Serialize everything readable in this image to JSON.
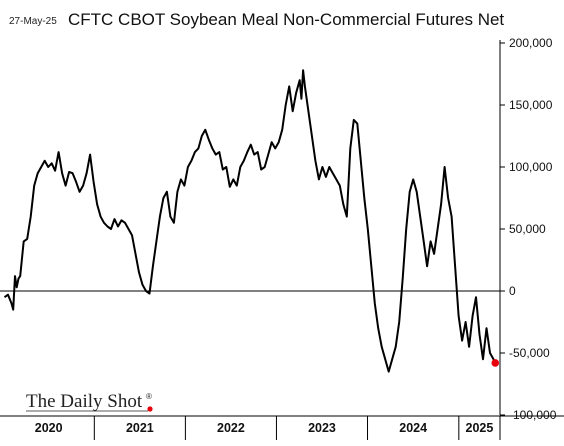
{
  "header": {
    "date": "27-May-25",
    "title": "CFTC CBOT Soybean Meal Non-Commercial Futures Net"
  },
  "watermark": {
    "text": "The Daily Shot",
    "trademark": "®",
    "dot_color": "#e8000b"
  },
  "chart_data": {
    "type": "line",
    "title": "CFTC CBOT Soybean Meal Non-Commercial Futures Net",
    "xlabel": "",
    "ylabel": "",
    "y_axis_side": "right",
    "ylim": [
      -100000,
      200000
    ],
    "yticks": [
      200000,
      150000,
      100000,
      50000,
      0,
      -50000,
      -100000
    ],
    "ytick_labels": [
      "200,000",
      "150,000",
      "100,000",
      "50,000",
      "0",
      "-50,000",
      "-100,000"
    ],
    "zero_line": true,
    "grid": false,
    "x_categories": [
      "2020",
      "2021",
      "2022",
      "2023",
      "2024",
      "2025"
    ],
    "xlim": [
      "2020-01-01",
      "2025-06-15"
    ],
    "line_color": "#000000",
    "end_marker_color": "#e8000b",
    "series": [
      {
        "points": [
          [
            "2020-01-07",
            -5000
          ],
          [
            "2020-01-21",
            -3000
          ],
          [
            "2020-02-04",
            -10000
          ],
          [
            "2020-02-11",
            -15000
          ],
          [
            "2020-02-18",
            12000
          ],
          [
            "2020-02-25",
            3000
          ],
          [
            "2020-03-03",
            10000
          ],
          [
            "2020-03-10",
            12000
          ],
          [
            "2020-03-24",
            40000
          ],
          [
            "2020-04-07",
            42000
          ],
          [
            "2020-04-21",
            60000
          ],
          [
            "2020-05-05",
            85000
          ],
          [
            "2020-05-19",
            95000
          ],
          [
            "2020-06-02",
            100000
          ],
          [
            "2020-06-16",
            105000
          ],
          [
            "2020-06-30",
            100000
          ],
          [
            "2020-07-14",
            103000
          ],
          [
            "2020-07-28",
            97000
          ],
          [
            "2020-08-11",
            112000
          ],
          [
            "2020-08-25",
            95000
          ],
          [
            "2020-09-08",
            85000
          ],
          [
            "2020-09-22",
            96000
          ],
          [
            "2020-10-06",
            95000
          ],
          [
            "2020-10-20",
            88000
          ],
          [
            "2020-11-03",
            80000
          ],
          [
            "2020-11-17",
            85000
          ],
          [
            "2020-12-01",
            95000
          ],
          [
            "2020-12-15",
            110000
          ],
          [
            "2020-12-29",
            88000
          ],
          [
            "2021-01-12",
            70000
          ],
          [
            "2021-01-26",
            60000
          ],
          [
            "2021-02-09",
            55000
          ],
          [
            "2021-02-23",
            52000
          ],
          [
            "2021-03-09",
            50000
          ],
          [
            "2021-03-23",
            58000
          ],
          [
            "2021-04-06",
            52000
          ],
          [
            "2021-04-20",
            57000
          ],
          [
            "2021-05-04",
            55000
          ],
          [
            "2021-05-18",
            50000
          ],
          [
            "2021-06-01",
            45000
          ],
          [
            "2021-06-15",
            30000
          ],
          [
            "2021-06-29",
            15000
          ],
          [
            "2021-07-13",
            5000
          ],
          [
            "2021-07-27",
            0
          ],
          [
            "2021-08-10",
            -2000
          ],
          [
            "2021-08-24",
            20000
          ],
          [
            "2021-09-07",
            40000
          ],
          [
            "2021-09-21",
            60000
          ],
          [
            "2021-10-05",
            75000
          ],
          [
            "2021-10-19",
            80000
          ],
          [
            "2021-11-02",
            60000
          ],
          [
            "2021-11-16",
            55000
          ],
          [
            "2021-11-30",
            80000
          ],
          [
            "2021-12-14",
            90000
          ],
          [
            "2021-12-28",
            85000
          ],
          [
            "2022-01-11",
            100000
          ],
          [
            "2022-01-25",
            105000
          ],
          [
            "2022-02-08",
            112000
          ],
          [
            "2022-02-22",
            115000
          ],
          [
            "2022-03-08",
            125000
          ],
          [
            "2022-03-22",
            130000
          ],
          [
            "2022-04-05",
            122000
          ],
          [
            "2022-04-19",
            115000
          ],
          [
            "2022-05-03",
            110000
          ],
          [
            "2022-05-17",
            112000
          ],
          [
            "2022-05-31",
            98000
          ],
          [
            "2022-06-14",
            100000
          ],
          [
            "2022-06-28",
            84000
          ],
          [
            "2022-07-12",
            90000
          ],
          [
            "2022-07-26",
            85000
          ],
          [
            "2022-08-09",
            100000
          ],
          [
            "2022-08-23",
            105000
          ],
          [
            "2022-09-06",
            112000
          ],
          [
            "2022-09-20",
            118000
          ],
          [
            "2022-10-04",
            110000
          ],
          [
            "2022-10-18",
            112000
          ],
          [
            "2022-11-01",
            98000
          ],
          [
            "2022-11-15",
            100000
          ],
          [
            "2022-11-29",
            110000
          ],
          [
            "2022-12-13",
            120000
          ],
          [
            "2022-12-27",
            115000
          ],
          [
            "2023-01-10",
            120000
          ],
          [
            "2023-01-24",
            130000
          ],
          [
            "2023-02-07",
            150000
          ],
          [
            "2023-02-21",
            165000
          ],
          [
            "2023-03-07",
            145000
          ],
          [
            "2023-03-21",
            160000
          ],
          [
            "2023-04-04",
            170000
          ],
          [
            "2023-04-11",
            155000
          ],
          [
            "2023-04-18",
            178000
          ],
          [
            "2023-04-25",
            165000
          ],
          [
            "2023-05-09",
            145000
          ],
          [
            "2023-05-23",
            125000
          ],
          [
            "2023-06-06",
            105000
          ],
          [
            "2023-06-20",
            90000
          ],
          [
            "2023-07-04",
            100000
          ],
          [
            "2023-07-18",
            92000
          ],
          [
            "2023-08-01",
            100000
          ],
          [
            "2023-08-15",
            95000
          ],
          [
            "2023-08-29",
            90000
          ],
          [
            "2023-09-12",
            85000
          ],
          [
            "2023-09-26",
            70000
          ],
          [
            "2023-10-10",
            60000
          ],
          [
            "2023-10-24",
            115000
          ],
          [
            "2023-11-07",
            138000
          ],
          [
            "2023-11-21",
            135000
          ],
          [
            "2023-12-05",
            105000
          ],
          [
            "2023-12-19",
            75000
          ],
          [
            "2024-01-02",
            50000
          ],
          [
            "2024-01-16",
            20000
          ],
          [
            "2024-01-30",
            -10000
          ],
          [
            "2024-02-13",
            -30000
          ],
          [
            "2024-02-27",
            -45000
          ],
          [
            "2024-03-12",
            -55000
          ],
          [
            "2024-03-26",
            -65000
          ],
          [
            "2024-04-09",
            -55000
          ],
          [
            "2024-04-23",
            -45000
          ],
          [
            "2024-05-07",
            -25000
          ],
          [
            "2024-05-21",
            10000
          ],
          [
            "2024-06-04",
            50000
          ],
          [
            "2024-06-18",
            80000
          ],
          [
            "2024-07-02",
            90000
          ],
          [
            "2024-07-16",
            80000
          ],
          [
            "2024-07-30",
            60000
          ],
          [
            "2024-08-13",
            40000
          ],
          [
            "2024-08-27",
            20000
          ],
          [
            "2024-09-10",
            40000
          ],
          [
            "2024-09-24",
            30000
          ],
          [
            "2024-10-08",
            50000
          ],
          [
            "2024-10-22",
            70000
          ],
          [
            "2024-11-05",
            100000
          ],
          [
            "2024-11-19",
            75000
          ],
          [
            "2024-12-03",
            60000
          ],
          [
            "2024-12-17",
            20000
          ],
          [
            "2024-12-31",
            -20000
          ],
          [
            "2025-01-14",
            -40000
          ],
          [
            "2025-01-28",
            -25000
          ],
          [
            "2025-02-11",
            -45000
          ],
          [
            "2025-02-25",
            -20000
          ],
          [
            "2025-03-11",
            -5000
          ],
          [
            "2025-03-25",
            -35000
          ],
          [
            "2025-04-08",
            -55000
          ],
          [
            "2025-04-22",
            -30000
          ],
          [
            "2025-05-06",
            -50000
          ],
          [
            "2025-05-20",
            -55000
          ],
          [
            "2025-05-27",
            -58000
          ]
        ]
      }
    ]
  }
}
